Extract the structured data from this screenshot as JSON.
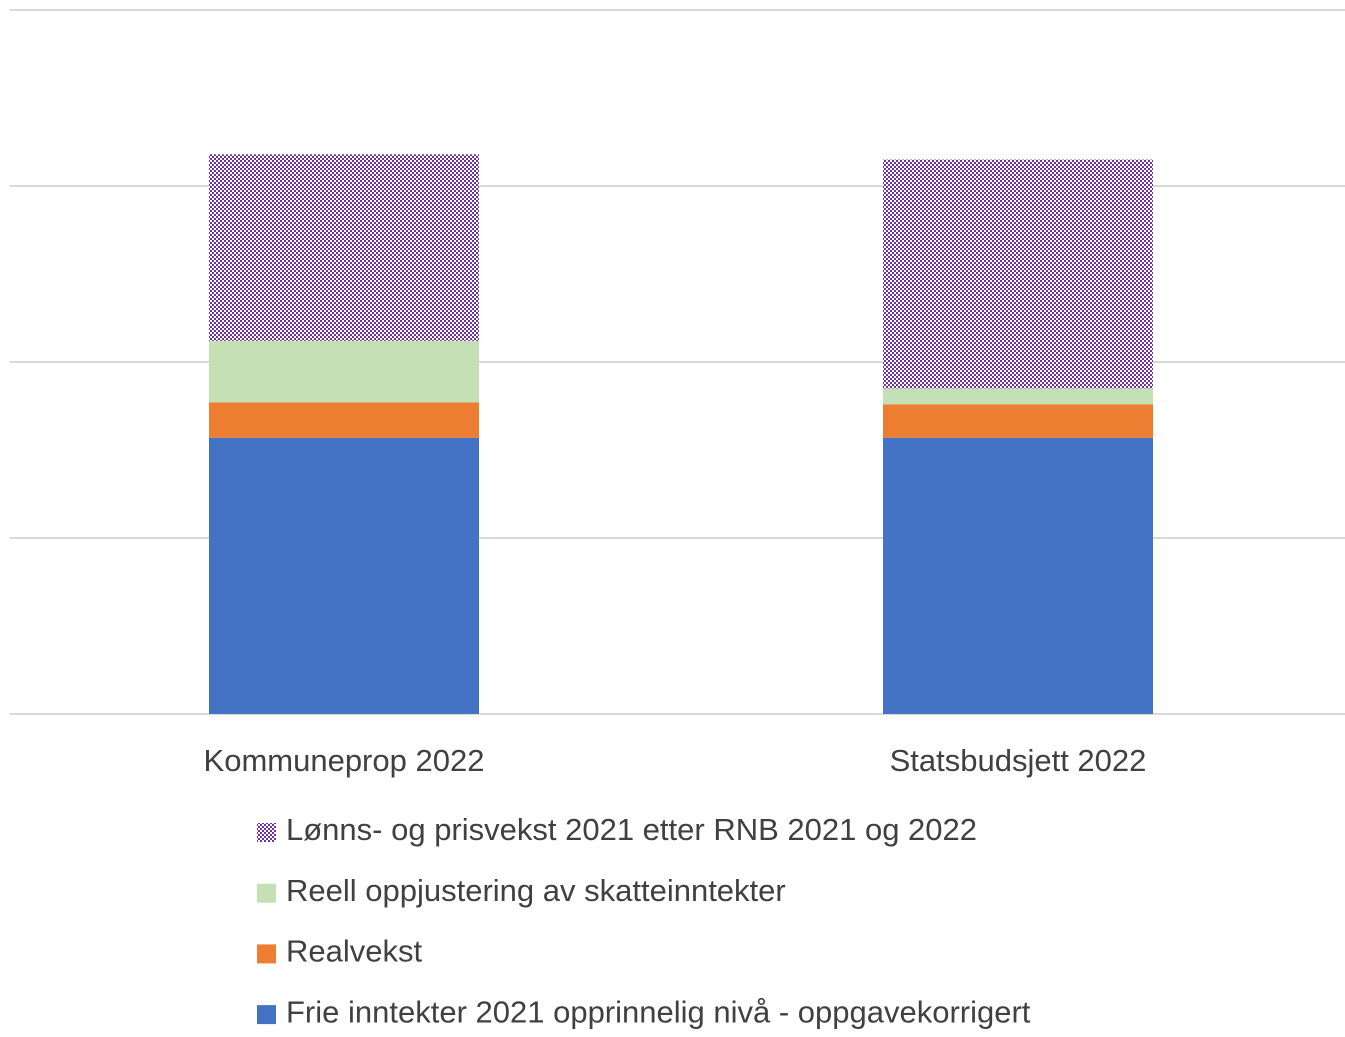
{
  "chart_data": {
    "type": "stacked_bar",
    "categories": [
      "Kommuneprop 2022",
      "Statsbudsjett 2022"
    ],
    "series": [
      {
        "name": "Frie inntekter 2021 opprinnelig nivå - oppgavekorrigert",
        "color": "#4472c4",
        "values": [
          1.57,
          1.57
        ]
      },
      {
        "name": "Realvekst",
        "color": "#ed7d31",
        "values": [
          0.2,
          0.19
        ]
      },
      {
        "name": "Reell oppjustering av skatteinntekter",
        "color": "#c5e0b4",
        "values": [
          0.35,
          0.09
        ]
      },
      {
        "name": "Lønns- og prisvekst 2021 etter RNB 2021 og 2022",
        "color": "#7030a0",
        "pattern": "checker",
        "values": [
          1.06,
          1.3
        ]
      }
    ],
    "ylim": [
      0,
      4
    ],
    "yticks": [
      0,
      1,
      2,
      3,
      4
    ],
    "grid": true
  }
}
